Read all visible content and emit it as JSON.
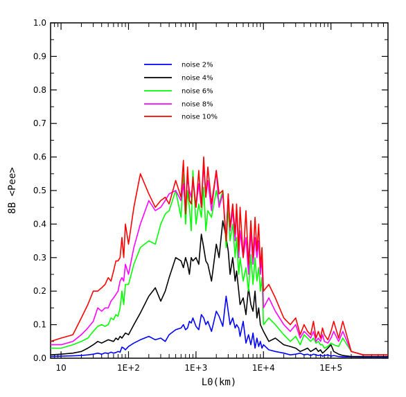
{
  "chart_data": {
    "type": "line",
    "title": "",
    "xlabel": "L0(km)",
    "ylabel": "8B <Pee>",
    "xscale": "log",
    "xlim": [
      7,
      700000
    ],
    "ylim": [
      0,
      1
    ],
    "x_tick_labels": [
      {
        "value": 10,
        "label": "10"
      },
      {
        "value": 100,
        "label": "1E+2"
      },
      {
        "value": 1000,
        "label": "1E+3"
      },
      {
        "value": 10000,
        "label": "1E+4"
      },
      {
        "value": 100000,
        "label": "1E+5"
      }
    ],
    "y_tick_labels": [
      "0.0",
      "0.1",
      "0.2",
      "0.3",
      "0.4",
      "0.5",
      "0.6",
      "0.7",
      "0.8",
      "0.9",
      "1.0"
    ],
    "y_ticks": [
      0,
      0.1,
      0.2,
      0.3,
      0.4,
      0.5,
      0.6,
      0.7,
      0.8,
      0.9,
      1.0
    ],
    "grid": false,
    "legend_position": "upper-left inside plot",
    "series": [
      {
        "name": "noise 2%",
        "color": "#0000ff",
        "x": [
          7,
          10,
          15,
          20,
          25,
          30,
          35,
          40,
          45,
          50,
          55,
          60,
          65,
          70,
          75,
          80,
          85,
          90,
          100,
          120,
          150,
          200,
          250,
          300,
          350,
          400,
          500,
          600,
          650,
          700,
          750,
          800,
          850,
          900,
          1000,
          1100,
          1200,
          1300,
          1400,
          1500,
          1700,
          2000,
          2200,
          2500,
          2800,
          3000,
          3200,
          3500,
          3800,
          4000,
          4300,
          4500,
          5000,
          5500,
          6000,
          6500,
          7000,
          7500,
          8000,
          8500,
          9000,
          9500,
          10000,
          12000,
          15000,
          20000,
          25000,
          30000,
          35000,
          40000,
          45000,
          50000,
          55000,
          60000,
          65000,
          70000,
          75000,
          80000,
          90000,
          100000,
          110000,
          130000,
          150000,
          200000,
          300000,
          500000,
          700000
        ],
        "y": [
          0.005,
          0.006,
          0.007,
          0.008,
          0.01,
          0.012,
          0.015,
          0.012,
          0.016,
          0.014,
          0.018,
          0.015,
          0.017,
          0.02,
          0.018,
          0.033,
          0.03,
          0.025,
          0.035,
          0.045,
          0.055,
          0.065,
          0.055,
          0.06,
          0.05,
          0.07,
          0.085,
          0.09,
          0.1,
          0.085,
          0.09,
          0.11,
          0.105,
          0.12,
          0.095,
          0.085,
          0.13,
          0.12,
          0.1,
          0.11,
          0.08,
          0.14,
          0.125,
          0.095,
          0.185,
          0.14,
          0.1,
          0.12,
          0.09,
          0.1,
          0.09,
          0.065,
          0.11,
          0.045,
          0.07,
          0.04,
          0.075,
          0.03,
          0.06,
          0.035,
          0.05,
          0.03,
          0.04,
          0.025,
          0.02,
          0.015,
          0.01,
          0.012,
          0.015,
          0.01,
          0.012,
          0.008,
          0.012,
          0.01,
          0.008,
          0.01,
          0.006,
          0.008,
          0.01,
          0.006,
          0.008,
          0.005,
          0.004,
          0.004,
          0.003,
          0.003,
          0.003
        ]
      },
      {
        "name": "noise 4%",
        "color": "#000000",
        "x": [
          7,
          10,
          15,
          20,
          25,
          30,
          35,
          40,
          50,
          60,
          65,
          70,
          75,
          80,
          90,
          100,
          120,
          150,
          200,
          250,
          300,
          350,
          400,
          500,
          600,
          650,
          700,
          750,
          800,
          850,
          900,
          1000,
          1100,
          1200,
          1300,
          1400,
          1500,
          1700,
          2000,
          2200,
          2500,
          2800,
          3000,
          3200,
          3500,
          3800,
          4000,
          4300,
          4500,
          5000,
          5500,
          6000,
          6500,
          7000,
          7500,
          8000,
          8500,
          9000,
          10000,
          12000,
          15000,
          20000,
          25000,
          30000,
          35000,
          40000,
          45000,
          50000,
          55000,
          60000,
          65000,
          70000,
          75000,
          80000,
          90000,
          100000,
          110000,
          130000,
          150000,
          200000,
          300000,
          500000,
          700000
        ],
        "y": [
          0.01,
          0.012,
          0.015,
          0.02,
          0.03,
          0.04,
          0.05,
          0.045,
          0.055,
          0.05,
          0.06,
          0.055,
          0.065,
          0.06,
          0.075,
          0.07,
          0.1,
          0.135,
          0.185,
          0.21,
          0.17,
          0.2,
          0.24,
          0.3,
          0.29,
          0.27,
          0.3,
          0.28,
          0.25,
          0.3,
          0.29,
          0.3,
          0.28,
          0.37,
          0.33,
          0.29,
          0.28,
          0.23,
          0.34,
          0.3,
          0.41,
          0.36,
          0.32,
          0.25,
          0.3,
          0.23,
          0.26,
          0.2,
          0.16,
          0.18,
          0.13,
          0.21,
          0.16,
          0.14,
          0.2,
          0.12,
          0.15,
          0.1,
          0.08,
          0.05,
          0.06,
          0.04,
          0.035,
          0.03,
          0.02,
          0.025,
          0.03,
          0.02,
          0.025,
          0.03,
          0.02,
          0.025,
          0.015,
          0.02,
          0.03,
          0.04,
          0.02,
          0.012,
          0.008,
          0.005,
          0.005,
          0.005,
          0.005
        ]
      },
      {
        "name": "noise 6%",
        "color": "#00ff00",
        "x": [
          7,
          10,
          15,
          20,
          25,
          30,
          35,
          40,
          45,
          50,
          55,
          60,
          65,
          70,
          75,
          80,
          85,
          90,
          100,
          120,
          150,
          200,
          250,
          300,
          350,
          400,
          500,
          600,
          650,
          700,
          750,
          800,
          850,
          900,
          1000,
          1100,
          1200,
          1300,
          1400,
          1500,
          1700,
          2000,
          2200,
          2500,
          2800,
          3000,
          3200,
          3500,
          3800,
          4000,
          4300,
          4500,
          5000,
          5500,
          6000,
          6500,
          7000,
          7500,
          8000,
          8500,
          9000,
          9500,
          10000,
          12000,
          15000,
          20000,
          25000,
          30000,
          35000,
          40000,
          45000,
          50000,
          55000,
          60000,
          65000,
          70000,
          75000,
          80000,
          90000,
          100000,
          110000,
          130000,
          150000,
          200000,
          300000,
          500000,
          700000
        ],
        "y": [
          0.03,
          0.03,
          0.04,
          0.05,
          0.06,
          0.08,
          0.095,
          0.1,
          0.095,
          0.1,
          0.12,
          0.115,
          0.13,
          0.125,
          0.15,
          0.2,
          0.16,
          0.22,
          0.22,
          0.28,
          0.33,
          0.35,
          0.34,
          0.4,
          0.43,
          0.44,
          0.5,
          0.42,
          0.55,
          0.4,
          0.5,
          0.45,
          0.38,
          0.56,
          0.4,
          0.46,
          0.42,
          0.51,
          0.38,
          0.44,
          0.42,
          0.5,
          0.46,
          0.5,
          0.33,
          0.45,
          0.35,
          0.4,
          0.3,
          0.36,
          0.25,
          0.3,
          0.23,
          0.27,
          0.2,
          0.31,
          0.22,
          0.3,
          0.23,
          0.27,
          0.2,
          0.24,
          0.1,
          0.12,
          0.1,
          0.07,
          0.05,
          0.065,
          0.04,
          0.07,
          0.06,
          0.05,
          0.06,
          0.045,
          0.05,
          0.04,
          0.04,
          0.03,
          0.035,
          0.045,
          0.04,
          0.035,
          0.06,
          0.02,
          0.01,
          0.01,
          0.01
        ]
      },
      {
        "name": "noise 8%",
        "color": "#ff00ff",
        "x": [
          7,
          10,
          15,
          20,
          25,
          30,
          35,
          40,
          45,
          50,
          55,
          60,
          65,
          70,
          75,
          80,
          85,
          90,
          100,
          120,
          150,
          200,
          250,
          300,
          350,
          400,
          500,
          600,
          650,
          700,
          750,
          800,
          850,
          900,
          1000,
          1100,
          1200,
          1300,
          1400,
          1500,
          1700,
          2000,
          2200,
          2500,
          2800,
          3000,
          3200,
          3500,
          3800,
          4000,
          4300,
          4500,
          5000,
          5500,
          6000,
          6500,
          7000,
          7500,
          8000,
          8500,
          9000,
          9500,
          10000,
          12000,
          15000,
          20000,
          25000,
          30000,
          35000,
          40000,
          45000,
          50000,
          55000,
          60000,
          65000,
          70000,
          75000,
          80000,
          90000,
          100000,
          110000,
          130000,
          150000,
          200000,
          300000,
          500000,
          700000
        ],
        "y": [
          0.04,
          0.04,
          0.05,
          0.07,
          0.09,
          0.11,
          0.15,
          0.14,
          0.15,
          0.15,
          0.17,
          0.18,
          0.19,
          0.2,
          0.23,
          0.24,
          0.23,
          0.28,
          0.25,
          0.33,
          0.4,
          0.47,
          0.44,
          0.45,
          0.47,
          0.49,
          0.5,
          0.47,
          0.52,
          0.44,
          0.54,
          0.5,
          0.48,
          0.53,
          0.45,
          0.52,
          0.45,
          0.58,
          0.48,
          0.53,
          0.44,
          0.56,
          0.45,
          0.49,
          0.35,
          0.49,
          0.38,
          0.44,
          0.35,
          0.45,
          0.3,
          0.38,
          0.3,
          0.36,
          0.25,
          0.38,
          0.28,
          0.36,
          0.3,
          0.35,
          0.25,
          0.3,
          0.15,
          0.18,
          0.14,
          0.1,
          0.08,
          0.1,
          0.06,
          0.08,
          0.07,
          0.06,
          0.08,
          0.05,
          0.06,
          0.05,
          0.07,
          0.05,
          0.045,
          0.06,
          0.08,
          0.05,
          0.08,
          0.02,
          0.01,
          0.01,
          0.01
        ]
      },
      {
        "name": "noise 10%",
        "color": "#ff0000",
        "x": [
          7,
          10,
          15,
          20,
          25,
          30,
          35,
          40,
          45,
          50,
          55,
          60,
          65,
          70,
          75,
          80,
          85,
          90,
          100,
          120,
          150,
          200,
          250,
          300,
          350,
          400,
          500,
          600,
          650,
          700,
          750,
          800,
          850,
          900,
          1000,
          1100,
          1200,
          1300,
          1400,
          1500,
          1700,
          2000,
          2200,
          2500,
          2800,
          3000,
          3200,
          3500,
          3800,
          4000,
          4300,
          4500,
          5000,
          5500,
          6000,
          6500,
          7000,
          7500,
          8000,
          8500,
          9000,
          9500,
          10000,
          12000,
          15000,
          20000,
          25000,
          30000,
          35000,
          40000,
          45000,
          50000,
          55000,
          60000,
          65000,
          70000,
          75000,
          80000,
          90000,
          100000,
          110000,
          130000,
          150000,
          200000,
          300000,
          500000,
          700000
        ],
        "y": [
          0.05,
          0.06,
          0.07,
          0.12,
          0.16,
          0.2,
          0.2,
          0.21,
          0.22,
          0.24,
          0.23,
          0.26,
          0.29,
          0.29,
          0.3,
          0.36,
          0.3,
          0.4,
          0.34,
          0.45,
          0.55,
          0.49,
          0.45,
          0.47,
          0.48,
          0.46,
          0.53,
          0.48,
          0.59,
          0.43,
          0.57,
          0.47,
          0.46,
          0.54,
          0.45,
          0.56,
          0.45,
          0.6,
          0.48,
          0.57,
          0.46,
          0.56,
          0.49,
          0.5,
          0.35,
          0.49,
          0.39,
          0.46,
          0.37,
          0.46,
          0.32,
          0.45,
          0.3,
          0.44,
          0.28,
          0.41,
          0.3,
          0.42,
          0.32,
          0.4,
          0.27,
          0.33,
          0.2,
          0.22,
          0.18,
          0.12,
          0.1,
          0.12,
          0.07,
          0.1,
          0.08,
          0.07,
          0.11,
          0.06,
          0.08,
          0.06,
          0.09,
          0.07,
          0.055,
          0.08,
          0.11,
          0.06,
          0.11,
          0.02,
          0.01,
          0.01,
          0.01
        ]
      }
    ]
  }
}
